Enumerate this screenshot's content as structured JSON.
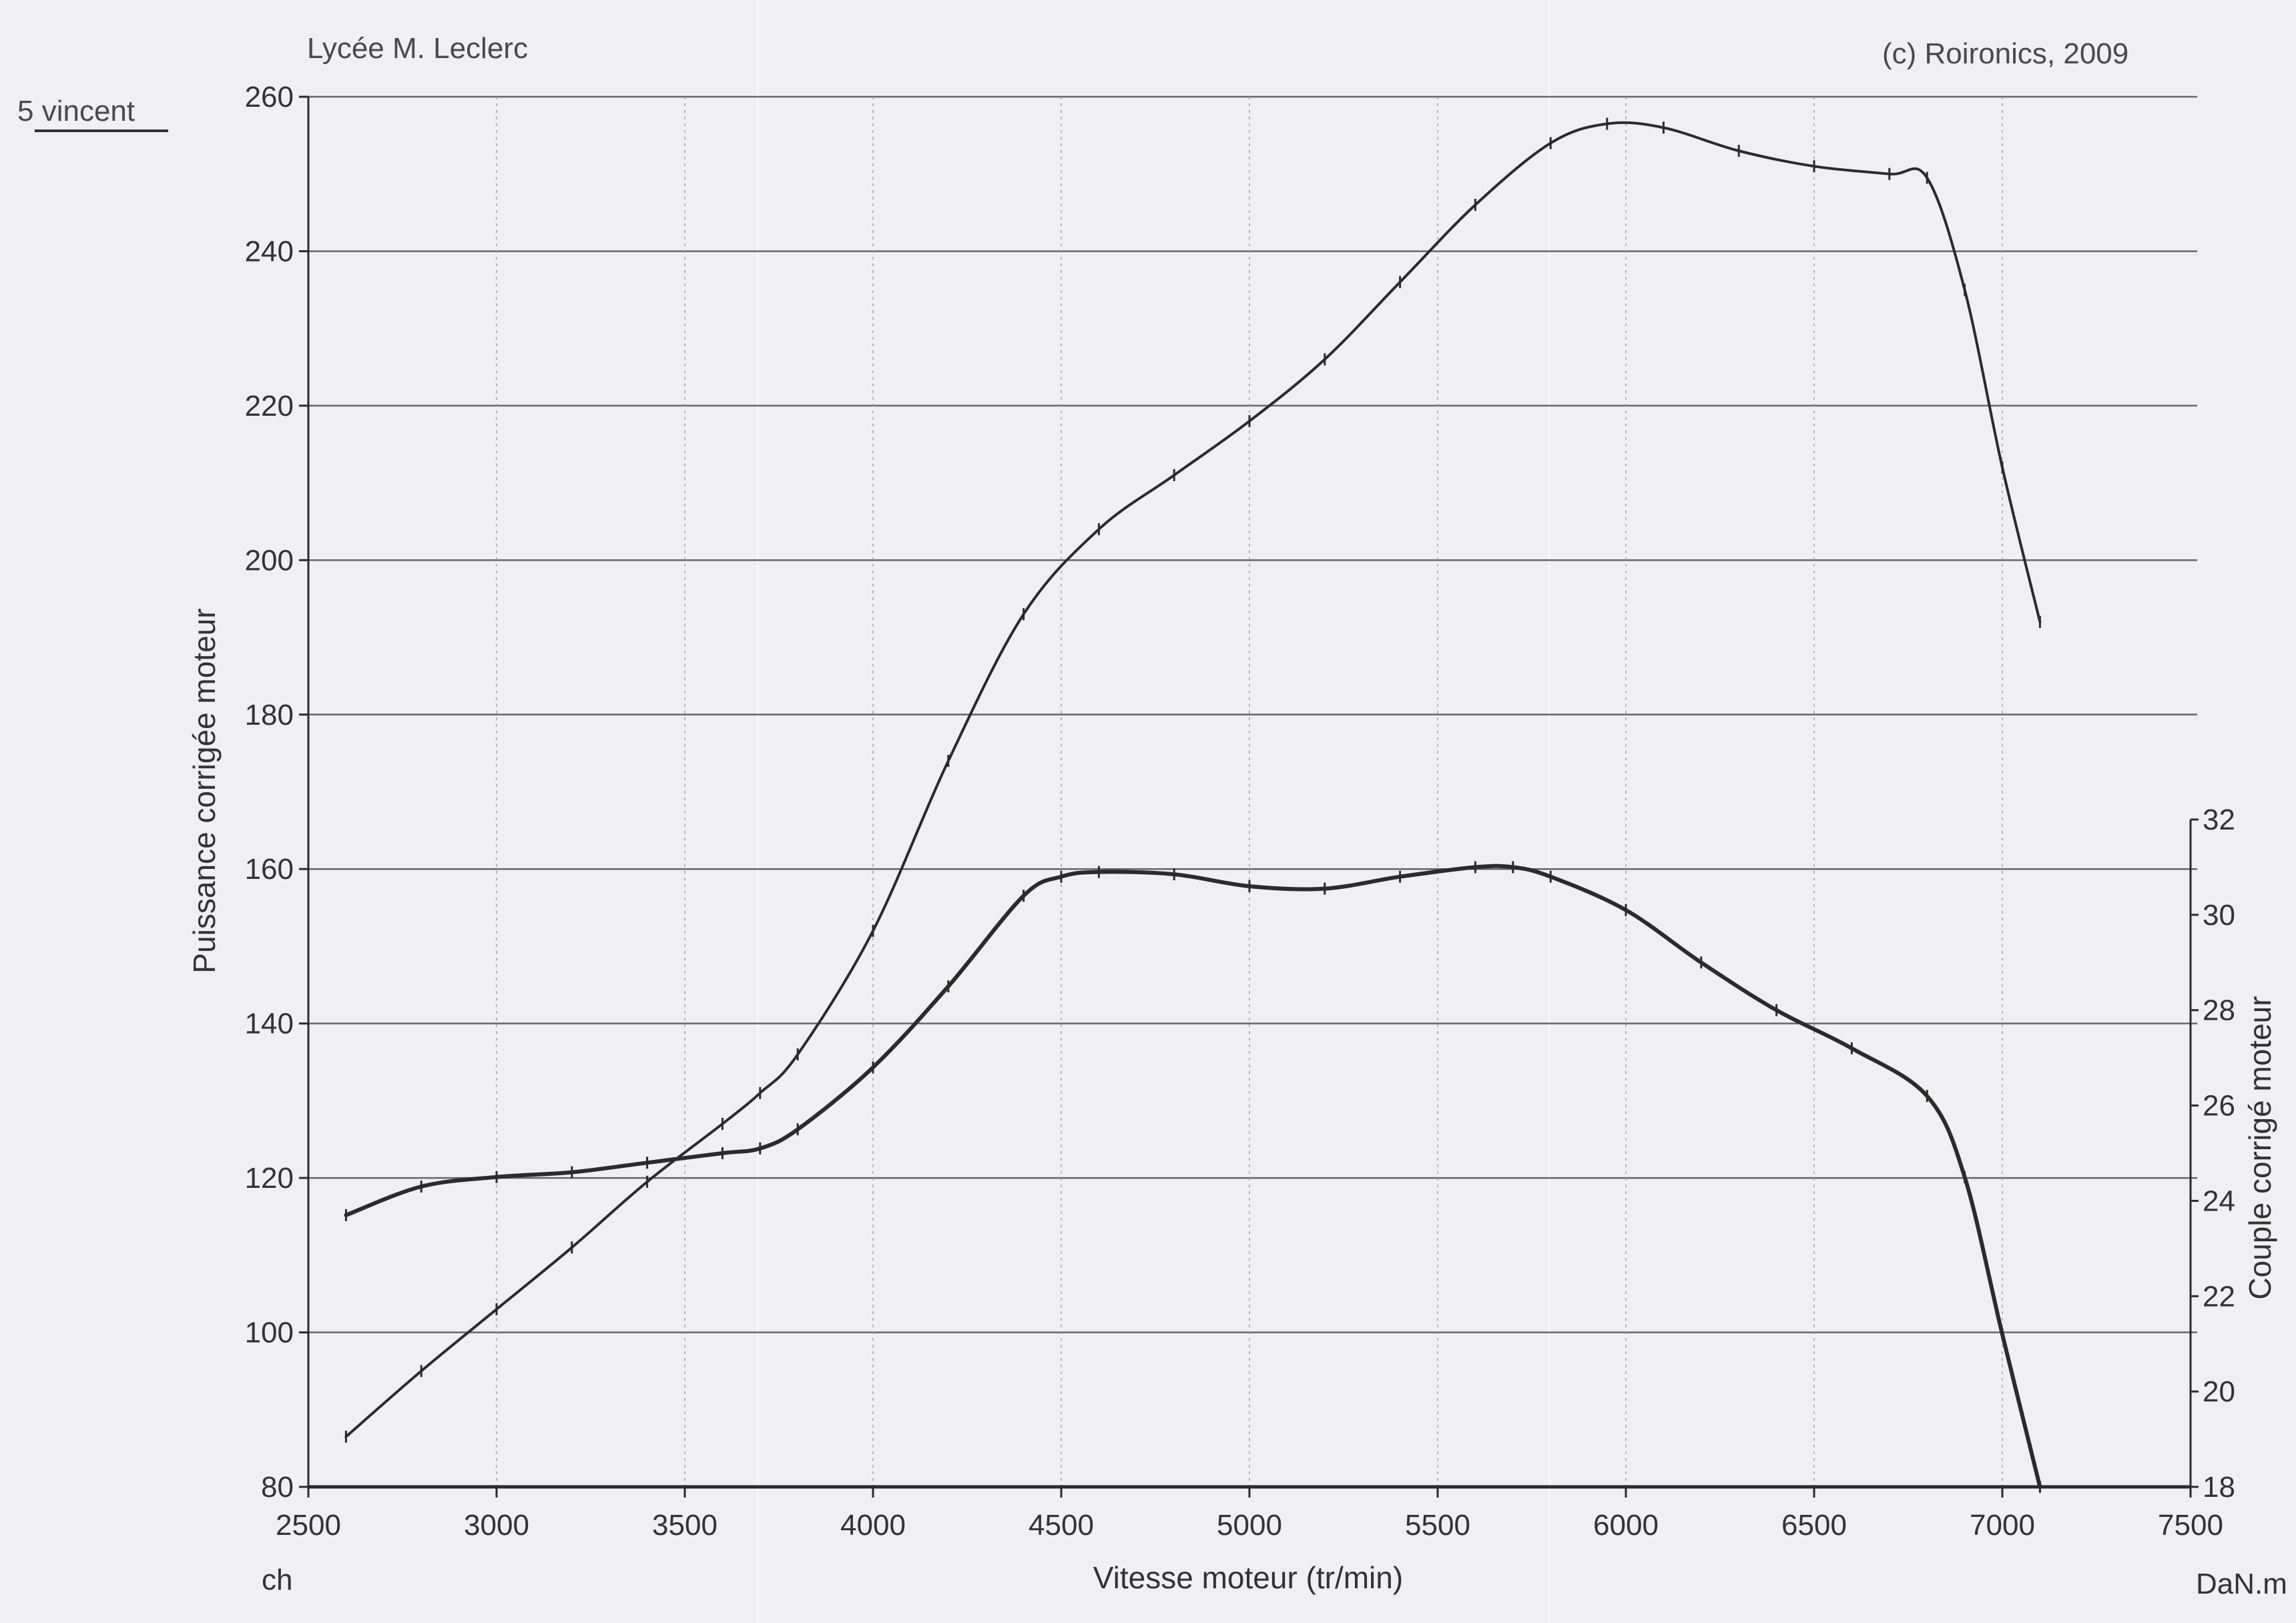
{
  "header": {
    "left_note": "Lycée M. Leclerc",
    "right_note": "(c) Roironics, 2009",
    "owner": "5 vincent"
  },
  "colors": {
    "paper": "#efeff4",
    "ink": "#2b2b2b",
    "grid": "#444444"
  },
  "chart_data": {
    "type": "line",
    "title": "",
    "xlabel": "Vitesse moteur (tr/min)",
    "ylabel": "Puissance corrigée moteur",
    "y2label": "Couple corrigé moteur",
    "x_unit": "ch",
    "y2_unit": "DaN.m",
    "xlim": [
      2500,
      7500
    ],
    "ylim": [
      80,
      260
    ],
    "y2lim": [
      18,
      32
    ],
    "x_ticks": [
      2500,
      3000,
      3500,
      4000,
      4500,
      5000,
      5500,
      6000,
      6500,
      7000,
      7500
    ],
    "y_ticks": [
      80,
      100,
      120,
      140,
      160,
      180,
      200,
      220,
      240,
      260
    ],
    "y2_ticks": [
      18,
      20,
      22,
      24,
      26,
      28,
      30,
      32
    ],
    "grid": true,
    "legend": "none",
    "series": [
      {
        "axis": "left",
        "x": [
          2600,
          2800,
          3000,
          3200,
          3400,
          3600,
          3700,
          3800,
          4000,
          4200,
          4400,
          4600,
          4800,
          5000,
          5200,
          5400,
          5600,
          5800,
          5950,
          6100,
          6300,
          6500,
          6700,
          6800,
          6900,
          7000,
          7100
        ],
        "y": [
          86.5,
          95,
          103,
          111,
          119.5,
          127,
          131,
          136,
          152,
          174,
          193,
          204,
          211,
          218,
          226,
          236,
          246,
          254,
          256.5,
          256,
          253,
          251,
          250,
          249.5,
          235,
          212,
          192
        ]
      },
      {
        "axis": "right",
        "x": [
          2600,
          2800,
          3000,
          3200,
          3400,
          3600,
          3700,
          3800,
          4000,
          4200,
          4400,
          4500,
          4600,
          4800,
          5000,
          5200,
          5400,
          5600,
          5700,
          5800,
          6000,
          6200,
          6400,
          6600,
          6800,
          6900,
          7000,
          7100
        ],
        "y": [
          23.7,
          24.3,
          24.5,
          24.6,
          24.8,
          25,
          25.1,
          25.5,
          26.8,
          28.5,
          30.4,
          30.8,
          30.9,
          30.85,
          30.6,
          30.55,
          30.8,
          31,
          31,
          30.8,
          30.1,
          29,
          28,
          27.2,
          26.2,
          24.5,
          21.2,
          18
        ]
      }
    ]
  }
}
